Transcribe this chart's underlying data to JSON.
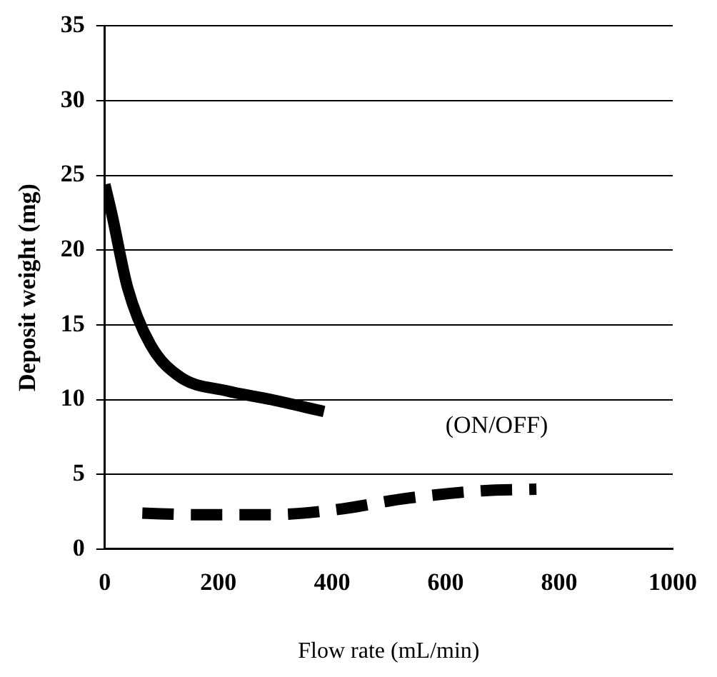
{
  "chart_data": {
    "type": "line",
    "xlabel": "Flow rate (mL/min)",
    "ylabel": "Deposit weight (mg)",
    "xlim": [
      0,
      1000
    ],
    "xticks": [
      0,
      200,
      400,
      600,
      800,
      1000
    ],
    "ylim": [
      0,
      35
    ],
    "yticks": [
      0,
      5,
      10,
      15,
      20,
      25,
      30,
      35
    ],
    "grid": "y",
    "marker": "none",
    "series": [
      {
        "color": "#000000",
        "line_style": "solid",
        "x": [
          0,
          13,
          40,
          80,
          133,
          213,
          293,
          386
        ],
        "values": [
          24.4,
          22.3,
          17.5,
          13.7,
          11.5,
          10.6,
          10,
          9.2
        ]
      },
      {
        "color": "#000000",
        "line_style": "dashed",
        "x": [
          66,
          160,
          293,
          400,
          533,
          665,
          760
        ],
        "values": [
          2.4,
          2.3,
          2.3,
          2.6,
          3.4,
          3.9,
          4.0
        ]
      }
    ],
    "annotations": [
      "(ON/OFF)"
    ]
  }
}
